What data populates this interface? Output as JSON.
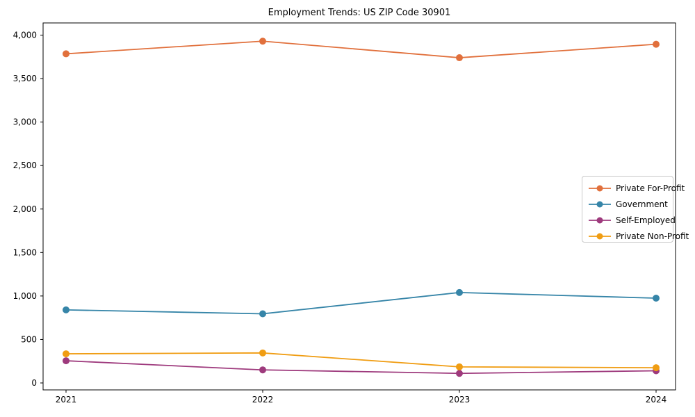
{
  "chart_data": {
    "type": "line",
    "title": "Employment Trends: US ZIP Code 30901",
    "xlabel": "",
    "ylabel": "",
    "categories": [
      "2021",
      "2022",
      "2023",
      "2024"
    ],
    "series": [
      {
        "name": "Private For-Profit",
        "color": "#E1703C",
        "values": [
          3785,
          3930,
          3740,
          3895
        ]
      },
      {
        "name": "Government",
        "color": "#3685A8",
        "values": [
          840,
          795,
          1040,
          975
        ]
      },
      {
        "name": "Self-Employed",
        "color": "#9E3A7D",
        "values": [
          255,
          150,
          110,
          140
        ]
      },
      {
        "name": "Private Non-Profit",
        "color": "#F09D13",
        "values": [
          335,
          345,
          185,
          175
        ]
      }
    ],
    "yticks": [
      {
        "value": 0,
        "label": "0"
      },
      {
        "value": 500,
        "label": "500"
      },
      {
        "value": 1000,
        "label": "1,000"
      },
      {
        "value": 1500,
        "label": "1,500"
      },
      {
        "value": 2000,
        "label": "2,000"
      },
      {
        "value": 2500,
        "label": "2,500"
      },
      {
        "value": 3000,
        "label": "3,000"
      },
      {
        "value": 3500,
        "label": "3,500"
      },
      {
        "value": 4000,
        "label": "4,000"
      }
    ],
    "ylim": [
      -80,
      4140
    ],
    "grid": false,
    "marker": "circle",
    "legend_position": "center right",
    "frame_color": "#000000"
  }
}
